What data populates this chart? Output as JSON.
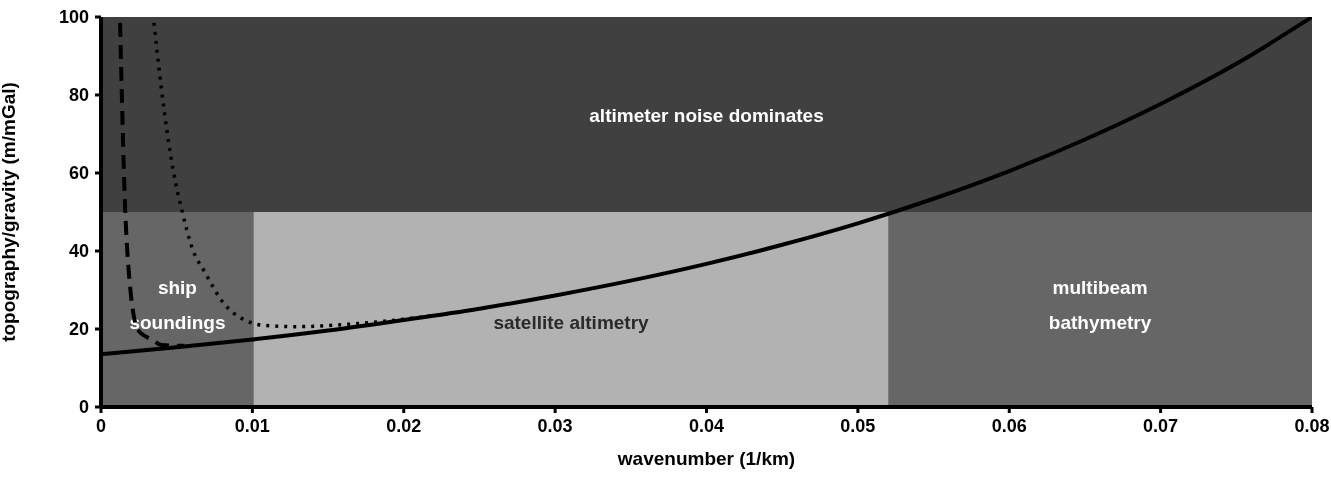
{
  "chart_data": {
    "type": "line",
    "xlabel": "wavenumber (1/km)",
    "ylabel": "topography/gravity (m/mGal)",
    "xlim": [
      0,
      0.08
    ],
    "ylim": [
      0,
      100
    ],
    "xticks": [
      0,
      0.01,
      0.02,
      0.03,
      0.04,
      0.05,
      0.06,
      0.07,
      0.08
    ],
    "yticks": [
      0,
      20,
      40,
      60,
      80,
      100
    ],
    "bands": [
      {
        "axis": "x",
        "from": 0,
        "to": 0.0101,
        "label": "ship\nsoundings",
        "color": "#666666"
      },
      {
        "axis": "x",
        "from": 0.0101,
        "to": 0.052,
        "label": "satellite altimetry",
        "color": "#b2b2b2"
      },
      {
        "axis": "x",
        "from": 0.052,
        "to": 0.08,
        "label": "multibeam\nbathymetry",
        "color": "#666666"
      },
      {
        "axis": "y",
        "from": 50,
        "to": 100,
        "label": "altimeter noise dominates",
        "color": "#404040"
      }
    ],
    "series": [
      {
        "color": "#000000",
        "line_style": "solid",
        "x": [
          0,
          0.005,
          0.01,
          0.015,
          0.02,
          0.025,
          0.03,
          0.035,
          0.04,
          0.045,
          0.05,
          0.055,
          0.06,
          0.065,
          0.07,
          0.075,
          0.08
        ],
        "values": [
          13.5,
          15.3,
          17.3,
          19.6,
          22.3,
          25.2,
          28.6,
          32.4,
          36.7,
          41.6,
          47.1,
          53.4,
          60.5,
          68.6,
          77.7,
          88.0,
          100
        ]
      },
      {
        "color": "#000000",
        "line_style": "dashed",
        "x": [
          0.00126,
          0.0016,
          0.0019,
          0.00245,
          0.0034,
          0.004,
          0.0055
        ],
        "values": [
          98.5,
          50.5,
          31.8,
          19.7,
          17.2,
          15.9,
          15.7
        ]
      },
      {
        "color": "#000000",
        "line_style": "dotted",
        "x": [
          0.0035,
          0.004,
          0.00435,
          0.0049,
          0.00534,
          0.006,
          0.0069,
          0.0081,
          0.0095,
          0.0106,
          0.0128,
          0.0173,
          0.0229
        ],
        "values": [
          98.5,
          81.3,
          71,
          58,
          50.5,
          41,
          34.3,
          26.6,
          22.3,
          21,
          20.6,
          21.5,
          23.9
        ]
      }
    ]
  }
}
